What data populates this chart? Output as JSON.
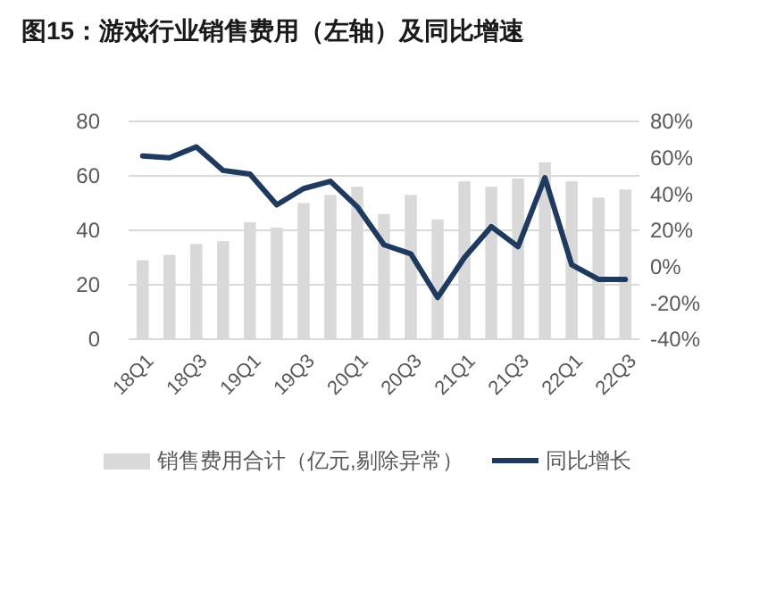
{
  "chart_data": {
    "type": "bar",
    "title": "图15：游戏行业销售费用（左轴）及同比增速",
    "categories": [
      "18Q1",
      null,
      "18Q3",
      null,
      "19Q1",
      null,
      "19Q3",
      null,
      "20Q1",
      null,
      "20Q3",
      null,
      "21Q1",
      null,
      "21Q3",
      null,
      "22Q1",
      null,
      "22Q3"
    ],
    "series": [
      {
        "name": "销售费用合计（亿元,剔除异常）",
        "color": "#d9d9d9",
        "values": [
          29,
          31,
          35,
          36,
          43,
          41,
          50,
          53,
          56,
          46,
          53,
          44,
          58,
          56,
          59,
          65,
          58,
          52,
          55
        ]
      },
      {
        "name": "同比增长",
        "type": "line",
        "axis": "y2",
        "color": "#1f3a5f",
        "values": [
          61,
          60,
          66,
          53,
          51,
          34,
          43,
          47,
          33,
          12,
          7,
          -17,
          5,
          22,
          11,
          49,
          1,
          -7,
          -7
        ]
      }
    ],
    "ylim": [
      0,
      80
    ],
    "yticks": [
      0,
      20,
      40,
      60,
      80
    ],
    "y2lim": [
      -40,
      80
    ],
    "y2ticks": [
      {
        "value": -40,
        "label": "-40%"
      },
      {
        "value": -20,
        "label": "-20%"
      },
      {
        "value": 0,
        "label": "0%"
      },
      {
        "value": 20,
        "label": "20%"
      },
      {
        "value": 40,
        "label": "40%"
      },
      {
        "value": 60,
        "label": "60%"
      },
      {
        "value": 80,
        "label": "80%"
      }
    ],
    "grid": "y",
    "legend": "bottom",
    "marker": "none",
    "line_style": "solid"
  }
}
